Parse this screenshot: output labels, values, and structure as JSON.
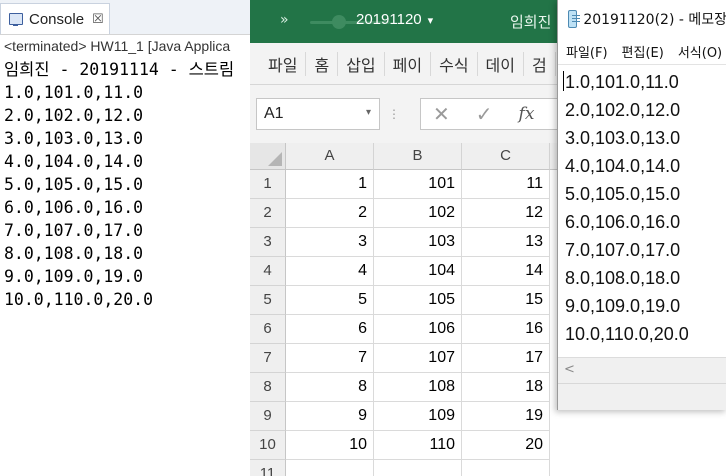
{
  "console": {
    "tab_title": "Console",
    "tab_close": "☒",
    "status": "<terminated> HW11_1 [Java Applica",
    "header_name": "임희진",
    "header_rest": " - 20191114 - 스트림",
    "lines": [
      "1.0,101.0,11.0",
      "2.0,102.0,12.0",
      "3.0,103.0,13.0",
      "4.0,104.0,14.0",
      "5.0,105.0,15.0",
      "6.0,106.0,16.0",
      "7.0,107.0,17.0",
      "8.0,108.0,18.0",
      "9.0,109.0,19.0",
      "10.0,110.0,20.0"
    ]
  },
  "excel": {
    "qat_icon": "»",
    "title": "20191120",
    "title_caret": "▾",
    "user": "임희진",
    "ribbon_tabs": [
      "파일",
      "홈",
      "삽입",
      "페이",
      "수식",
      "데이",
      "검"
    ],
    "namebox": "A1",
    "namebox_caret": "▾",
    "formula_dots": "⋮",
    "cancel_glyph": "✕",
    "confirm_glyph": "✓",
    "fx_label": "fx",
    "columns": [
      "A",
      "B",
      "C"
    ],
    "rows": [
      {
        "row": "1",
        "a": "1",
        "b": "101",
        "c": "11"
      },
      {
        "row": "2",
        "a": "2",
        "b": "102",
        "c": "12"
      },
      {
        "row": "3",
        "a": "3",
        "b": "103",
        "c": "13"
      },
      {
        "row": "4",
        "a": "4",
        "b": "104",
        "c": "14"
      },
      {
        "row": "5",
        "a": "5",
        "b": "105",
        "c": "15"
      },
      {
        "row": "6",
        "a": "6",
        "b": "106",
        "c": "16"
      },
      {
        "row": "7",
        "a": "7",
        "b": "107",
        "c": "17"
      },
      {
        "row": "8",
        "a": "8",
        "b": "108",
        "c": "18"
      },
      {
        "row": "9",
        "a": "9",
        "b": "109",
        "c": "19"
      },
      {
        "row": "10",
        "a": "10",
        "b": "110",
        "c": "20"
      },
      {
        "row": "11",
        "a": "",
        "b": "",
        "c": ""
      }
    ]
  },
  "notepad": {
    "title": "20191120(2) - 메모장",
    "menus": [
      "파일(F)",
      "편집(E)",
      "서식(O)"
    ],
    "lines": [
      "1.0,101.0,11.0",
      "2.0,102.0,12.0",
      "3.0,103.0,13.0",
      "4.0,104.0,14.0",
      "5.0,105.0,15.0",
      "6.0,106.0,16.0",
      "7.0,107.0,17.0",
      "8.0,108.0,18.0",
      "9.0,109.0,19.0",
      "10.0,110.0,20.0"
    ],
    "scroll_left": "<"
  }
}
